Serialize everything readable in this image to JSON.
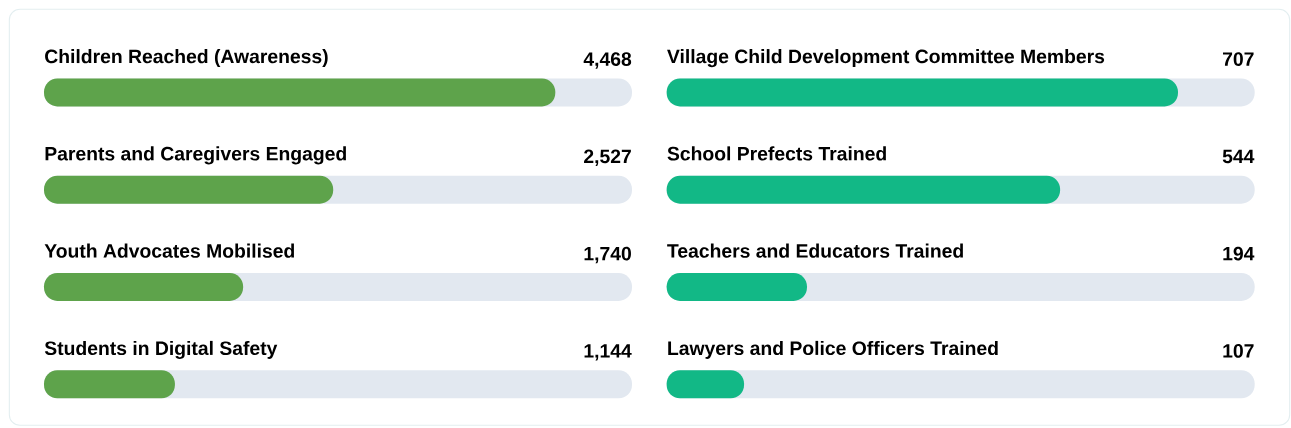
{
  "chart_data": [
    {
      "type": "bar",
      "orientation": "horizontal",
      "tick_labels": false,
      "color": "#5ea34b",
      "categories": [
        "Children Reached (Awareness)",
        "Parents and Caregivers Engaged",
        "Youth Advocates Mobilised",
        "Students in Digital Safety"
      ],
      "values": [
        4468,
        2527,
        1740,
        1144
      ],
      "value_labels": [
        "4,468",
        "2,527",
        "1,740",
        "1,144"
      ]
    },
    {
      "type": "bar",
      "orientation": "horizontal",
      "tick_labels": false,
      "color": "#12b886",
      "categories": [
        "Village Child Development Committee Members",
        "School Prefects Trained",
        "Teachers and Educators Trained",
        "Lawyers and Police Officers Trained"
      ],
      "values": [
        707,
        544,
        194,
        107
      ],
      "value_labels": [
        "707",
        "544",
        "194",
        "107"
      ]
    }
  ]
}
